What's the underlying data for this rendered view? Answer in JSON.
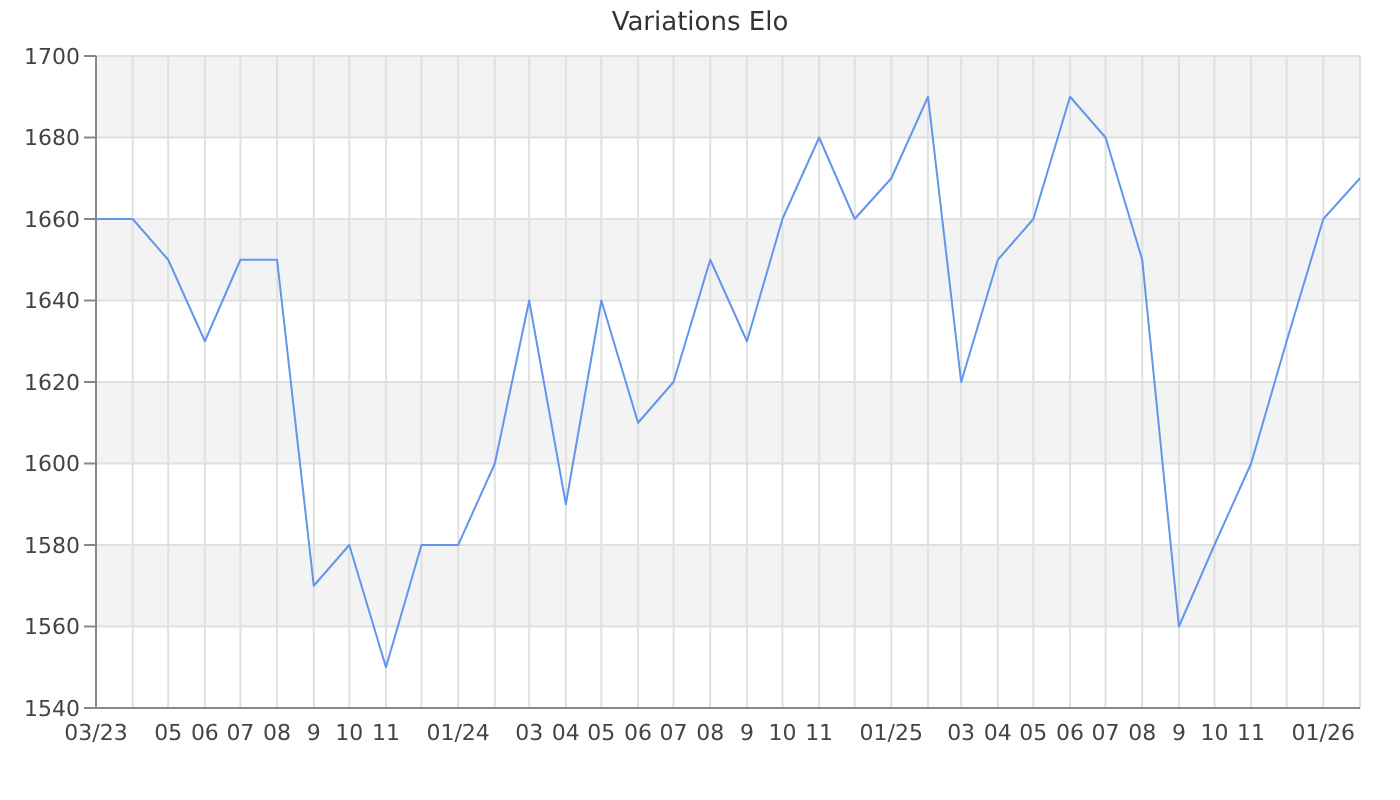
{
  "chart_data": {
    "type": "line",
    "title": "Variations Elo",
    "x": [
      "2023-03",
      "2023-04",
      "2023-05",
      "2023-06",
      "2023-07",
      "2023-08",
      "2023-09",
      "2023-10",
      "2023-11",
      "2023-12",
      "2024-01",
      "2024-02",
      "2024-03",
      "2024-04",
      "2024-05",
      "2024-06",
      "2024-07",
      "2024-08",
      "2024-09",
      "2024-10",
      "2024-11",
      "2024-12",
      "2025-01",
      "2025-02",
      "2025-03",
      "2025-04",
      "2025-05",
      "2025-06",
      "2025-07",
      "2025-08",
      "2025-09",
      "2025-10",
      "2025-11",
      "2025-12",
      "2026-01",
      "2026-02"
    ],
    "series": [
      {
        "color": "#6495ed",
        "values": [
          1660,
          1660,
          1650,
          1630,
          1650,
          1650,
          1570,
          1580,
          1550,
          1580,
          1580,
          1600,
          1640,
          1590,
          1640,
          1610,
          1620,
          1650,
          1630,
          1660,
          1680,
          1660,
          1670,
          1690,
          1620,
          1650,
          1660,
          1690,
          1680,
          1650,
          1560,
          1580,
          1600,
          1630,
          1660,
          1670
        ]
      }
    ],
    "xlim": [
      "2023-03",
      "2026-02"
    ],
    "xticks": [
      {
        "value": "2023-03",
        "label": "03/23"
      },
      {
        "value": "2023-04",
        "label": null
      },
      {
        "value": "2023-05",
        "label": "05"
      },
      {
        "value": "2023-06",
        "label": "06"
      },
      {
        "value": "2023-07",
        "label": "07"
      },
      {
        "value": "2023-08",
        "label": "08"
      },
      {
        "value": "2023-09",
        "label": "9"
      },
      {
        "value": "2023-10",
        "label": "10"
      },
      {
        "value": "2023-11",
        "label": "11"
      },
      {
        "value": "2023-12",
        "label": null
      },
      {
        "value": "2024-01",
        "label": "01/24"
      },
      {
        "value": "2024-02",
        "label": null
      },
      {
        "value": "2024-03",
        "label": "03"
      },
      {
        "value": "2024-04",
        "label": "04"
      },
      {
        "value": "2024-05",
        "label": "05"
      },
      {
        "value": "2024-06",
        "label": "06"
      },
      {
        "value": "2024-07",
        "label": "07"
      },
      {
        "value": "2024-08",
        "label": "08"
      },
      {
        "value": "2024-09",
        "label": "9"
      },
      {
        "value": "2024-10",
        "label": "10"
      },
      {
        "value": "2024-11",
        "label": "11"
      },
      {
        "value": "2024-12",
        "label": null
      },
      {
        "value": "2025-01",
        "label": "01/25"
      },
      {
        "value": "2025-02",
        "label": null
      },
      {
        "value": "2025-03",
        "label": "03"
      },
      {
        "value": "2025-04",
        "label": "04"
      },
      {
        "value": "2025-05",
        "label": "05"
      },
      {
        "value": "2025-06",
        "label": "06"
      },
      {
        "value": "2025-07",
        "label": "07"
      },
      {
        "value": "2025-08",
        "label": "08"
      },
      {
        "value": "2025-09",
        "label": "9"
      },
      {
        "value": "2025-10",
        "label": "10"
      },
      {
        "value": "2025-11",
        "label": "11"
      },
      {
        "value": "2025-12",
        "label": null
      },
      {
        "value": "2026-01",
        "label": "01/26"
      },
      {
        "value": "2026-02",
        "label": null
      }
    ],
    "ylim": [
      1540,
      1700
    ],
    "yticks": [
      1540,
      1560,
      1580,
      1600,
      1620,
      1640,
      1660,
      1680,
      1700
    ],
    "grid": true,
    "marker": "none",
    "line_style": "solid"
  }
}
